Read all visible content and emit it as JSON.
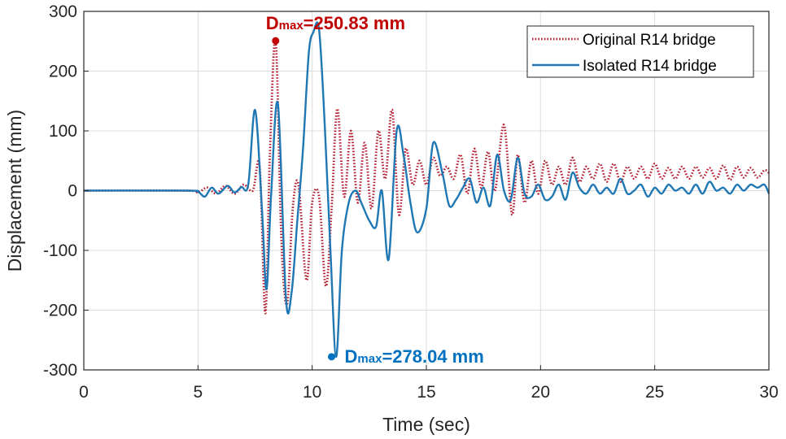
{
  "chart_data": {
    "type": "line",
    "xlabel": "Time (sec)",
    "ylabel": "Displacement (mm)",
    "xlim": [
      0,
      30
    ],
    "ylim": [
      -300,
      300
    ],
    "xticks": [
      0,
      5,
      10,
      15,
      20,
      25,
      30
    ],
    "yticks": [
      300,
      200,
      100,
      0,
      -100,
      -200,
      -300
    ],
    "xtick_labels": [
      "0",
      "5",
      "10",
      "15",
      "20",
      "25",
      "30"
    ],
    "ytick_labels": [
      "300",
      "200",
      "100",
      "0",
      "-100",
      "-200",
      "-300"
    ],
    "grid": true,
    "legend": {
      "position": "top-right"
    },
    "series": [
      {
        "name": "Original R14 bridge",
        "color": "#b2182b",
        "style": "dotted",
        "x": [
          0,
          4.5,
          5.0,
          5.4,
          5.8,
          6.2,
          6.6,
          7.0,
          7.4,
          7.7,
          7.95,
          8.15,
          8.4,
          8.65,
          8.9,
          9.15,
          9.4,
          9.75,
          10.0,
          10.3,
          10.6,
          10.85,
          11.1,
          11.4,
          11.7,
          12.0,
          12.3,
          12.6,
          12.9,
          13.2,
          13.5,
          13.8,
          14.1,
          14.4,
          14.7,
          15.0,
          15.3,
          15.6,
          15.9,
          16.2,
          16.5,
          16.8,
          17.1,
          17.4,
          17.7,
          18.0,
          18.4,
          18.75,
          19.0,
          19.3,
          19.6,
          19.9,
          20.2,
          20.5,
          20.8,
          21.1,
          21.4,
          21.7,
          22.0,
          22.3,
          22.6,
          22.9,
          23.2,
          23.5,
          23.8,
          24.1,
          24.4,
          24.7,
          25.0,
          25.3,
          25.6,
          25.9,
          26.2,
          26.5,
          26.8,
          27.1,
          27.4,
          27.7,
          28.0,
          28.3,
          28.6,
          28.9,
          29.2,
          29.5,
          29.8,
          30.0
        ],
        "y": [
          0,
          0,
          -3,
          5,
          -5,
          8,
          -5,
          10,
          0,
          40,
          -205,
          60,
          250.83,
          -80,
          -190,
          -30,
          10,
          -150,
          -20,
          -10,
          -160,
          -30,
          137,
          -10,
          100,
          -20,
          80,
          -30,
          100,
          20,
          135,
          -40,
          70,
          10,
          50,
          10,
          55,
          25,
          40,
          20,
          60,
          -5,
          70,
          5,
          65,
          0,
          110,
          -40,
          60,
          -20,
          50,
          -5,
          50,
          10,
          40,
          10,
          55,
          15,
          40,
          20,
          45,
          15,
          45,
          15,
          40,
          20,
          40,
          20,
          45,
          20,
          38,
          20,
          40,
          20,
          40,
          22,
          38,
          20,
          42,
          18,
          40,
          22,
          38,
          22,
          34,
          30
        ]
      },
      {
        "name": "Isolated R14 bridge",
        "color": "#1f77b4",
        "style": "solid",
        "x": [
          0,
          4.5,
          5.0,
          5.3,
          5.6,
          5.9,
          6.3,
          6.6,
          6.9,
          7.2,
          7.5,
          7.8,
          8.0,
          8.2,
          8.5,
          8.85,
          9.1,
          9.35,
          9.6,
          9.85,
          10.05,
          10.3,
          10.55,
          10.8,
          11.05,
          11.3,
          11.6,
          11.9,
          12.15,
          12.5,
          12.8,
          13.05,
          13.35,
          13.7,
          14.0,
          14.3,
          14.6,
          15.0,
          15.3,
          15.7,
          16.0,
          16.3,
          16.6,
          16.9,
          17.2,
          17.5,
          17.8,
          18.1,
          18.4,
          18.7,
          19.0,
          19.3,
          19.6,
          19.9,
          20.2,
          20.5,
          20.8,
          21.1,
          21.4,
          21.7,
          22.0,
          22.3,
          22.6,
          22.9,
          23.2,
          23.5,
          23.8,
          24.1,
          24.4,
          24.7,
          25.0,
          25.3,
          25.6,
          25.9,
          26.2,
          26.5,
          26.8,
          27.1,
          27.4,
          27.7,
          28.0,
          28.3,
          28.6,
          28.9,
          29.2,
          29.5,
          29.8,
          30.0
        ],
        "y": [
          0,
          0,
          -2,
          -10,
          5,
          -5,
          8,
          -3,
          6,
          10,
          135,
          -30,
          -165,
          -10,
          145,
          -180,
          -170,
          -50,
          70,
          230,
          265,
          270,
          110,
          -100,
          -278.04,
          -100,
          -20,
          0,
          -20,
          -50,
          -60,
          0,
          -115,
          100,
          60,
          -20,
          -70,
          -30,
          80,
          30,
          -25,
          -15,
          5,
          20,
          -20,
          5,
          -25,
          60,
          0,
          -15,
          55,
          -5,
          -10,
          10,
          -15,
          -10,
          10,
          -15,
          30,
          5,
          -5,
          10,
          -5,
          5,
          -5,
          20,
          -5,
          0,
          10,
          -10,
          5,
          -5,
          10,
          0,
          5,
          -5,
          10,
          -5,
          15,
          0,
          5,
          -5,
          10,
          0,
          10,
          5,
          10,
          -5
        ]
      }
    ],
    "annotations": [
      {
        "main": "D",
        "sub": "max",
        "rest": "=250.83 mm",
        "color": "#c00000",
        "x": 8.4,
        "y": 250.83
      },
      {
        "main": "D",
        "sub": "max",
        "rest": "=278.04 mm",
        "color": "#0070c0",
        "x": 10.85,
        "y": -278.04
      }
    ]
  }
}
